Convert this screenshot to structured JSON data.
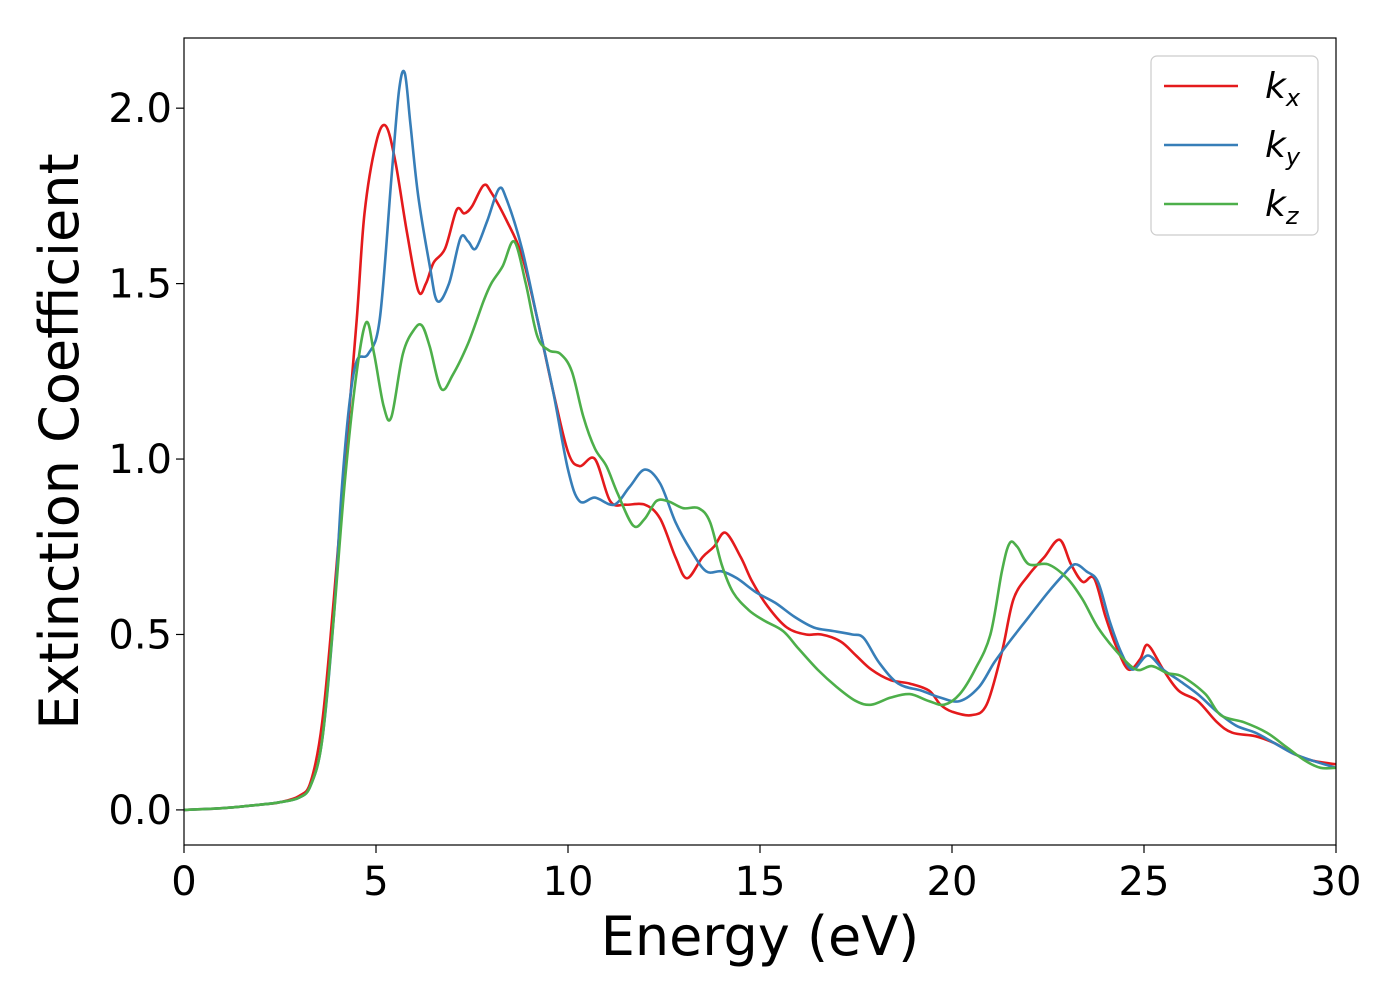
{
  "chart_data": {
    "type": "line",
    "xlabel": "Energy (eV)",
    "ylabel": "Extinction Coefficient",
    "xlim": [
      0,
      30
    ],
    "ylim": [
      -0.1,
      2.2
    ],
    "xticks": [
      0,
      5,
      10,
      15,
      20,
      25,
      30
    ],
    "xtick_labels": [
      "0",
      "5",
      "10",
      "15",
      "20",
      "25",
      "30"
    ],
    "yticks": [
      0.0,
      0.5,
      1.0,
      1.5,
      2.0
    ],
    "ytick_labels": [
      "0.0",
      "0.5",
      "1.0",
      "1.5",
      "2.0"
    ],
    "grid": false,
    "legend_position": "top-right",
    "series": [
      {
        "name": "k_x",
        "label_main": "k",
        "label_sub": "x",
        "color": "#e41a1c",
        "points": [
          [
            0,
            0
          ],
          [
            1,
            0.005
          ],
          [
            2,
            0.015
          ],
          [
            2.5,
            0.022
          ],
          [
            3,
            0.04
          ],
          [
            3.3,
            0.08
          ],
          [
            3.6,
            0.25
          ],
          [
            3.9,
            0.6
          ],
          [
            4.2,
            1.0
          ],
          [
            4.5,
            1.4
          ],
          [
            4.7,
            1.7
          ],
          [
            5,
            1.9
          ],
          [
            5.25,
            1.95
          ],
          [
            5.5,
            1.85
          ],
          [
            5.8,
            1.65
          ],
          [
            6.1,
            1.48
          ],
          [
            6.3,
            1.5
          ],
          [
            6.5,
            1.56
          ],
          [
            6.8,
            1.6
          ],
          [
            7.1,
            1.71
          ],
          [
            7.3,
            1.7
          ],
          [
            7.5,
            1.72
          ],
          [
            7.8,
            1.78
          ],
          [
            8,
            1.76
          ],
          [
            8.4,
            1.68
          ],
          [
            8.8,
            1.58
          ],
          [
            9.2,
            1.4
          ],
          [
            9.6,
            1.2
          ],
          [
            10,
            1.02
          ],
          [
            10.3,
            0.98
          ],
          [
            10.7,
            1.0
          ],
          [
            11.1,
            0.88
          ],
          [
            11.5,
            0.87
          ],
          [
            12,
            0.87
          ],
          [
            12.4,
            0.83
          ],
          [
            12.8,
            0.72
          ],
          [
            13.1,
            0.66
          ],
          [
            13.5,
            0.72
          ],
          [
            13.8,
            0.75
          ],
          [
            14.1,
            0.79
          ],
          [
            14.5,
            0.72
          ],
          [
            14.8,
            0.65
          ],
          [
            15.2,
            0.58
          ],
          [
            15.7,
            0.52
          ],
          [
            16.2,
            0.5
          ],
          [
            16.6,
            0.5
          ],
          [
            17.1,
            0.48
          ],
          [
            17.5,
            0.44
          ],
          [
            17.9,
            0.4
          ],
          [
            18.4,
            0.37
          ],
          [
            18.9,
            0.36
          ],
          [
            19.4,
            0.34
          ],
          [
            19.7,
            0.3
          ],
          [
            20,
            0.28
          ],
          [
            20.5,
            0.27
          ],
          [
            20.9,
            0.3
          ],
          [
            21.3,
            0.45
          ],
          [
            21.6,
            0.6
          ],
          [
            22,
            0.67
          ],
          [
            22.4,
            0.72
          ],
          [
            22.8,
            0.77
          ],
          [
            23.1,
            0.7
          ],
          [
            23.4,
            0.65
          ],
          [
            23.7,
            0.66
          ],
          [
            24,
            0.55
          ],
          [
            24.3,
            0.46
          ],
          [
            24.6,
            0.4
          ],
          [
            24.9,
            0.43
          ],
          [
            25.1,
            0.47
          ],
          [
            25.5,
            0.4
          ],
          [
            25.9,
            0.34
          ],
          [
            26.4,
            0.31
          ],
          [
            26.9,
            0.25
          ],
          [
            27.3,
            0.22
          ],
          [
            27.9,
            0.21
          ],
          [
            28.4,
            0.19
          ],
          [
            28.9,
            0.16
          ],
          [
            29.4,
            0.14
          ],
          [
            30,
            0.13
          ]
        ]
      },
      {
        "name": "k_y",
        "label_main": "k",
        "label_sub": "y",
        "color": "#377eb8",
        "points": [
          [
            0,
            0
          ],
          [
            1,
            0.005
          ],
          [
            2,
            0.015
          ],
          [
            2.5,
            0.022
          ],
          [
            3,
            0.035
          ],
          [
            3.3,
            0.07
          ],
          [
            3.6,
            0.2
          ],
          [
            3.9,
            0.55
          ],
          [
            4.1,
            0.9
          ],
          [
            4.3,
            1.15
          ],
          [
            4.5,
            1.28
          ],
          [
            4.8,
            1.3
          ],
          [
            5.1,
            1.4
          ],
          [
            5.4,
            1.8
          ],
          [
            5.6,
            2.05
          ],
          [
            5.75,
            2.1
          ],
          [
            5.9,
            1.95
          ],
          [
            6.1,
            1.75
          ],
          [
            6.4,
            1.55
          ],
          [
            6.6,
            1.45
          ],
          [
            6.9,
            1.5
          ],
          [
            7.2,
            1.63
          ],
          [
            7.4,
            1.62
          ],
          [
            7.6,
            1.6
          ],
          [
            7.9,
            1.68
          ],
          [
            8.2,
            1.77
          ],
          [
            8.4,
            1.74
          ],
          [
            8.8,
            1.6
          ],
          [
            9.2,
            1.4
          ],
          [
            9.6,
            1.2
          ],
          [
            10,
            0.97
          ],
          [
            10.3,
            0.88
          ],
          [
            10.7,
            0.89
          ],
          [
            11.2,
            0.87
          ],
          [
            11.6,
            0.92
          ],
          [
            12,
            0.97
          ],
          [
            12.4,
            0.93
          ],
          [
            12.8,
            0.82
          ],
          [
            13.2,
            0.74
          ],
          [
            13.6,
            0.68
          ],
          [
            14,
            0.68
          ],
          [
            14.4,
            0.66
          ],
          [
            14.9,
            0.62
          ],
          [
            15.4,
            0.59
          ],
          [
            15.9,
            0.55
          ],
          [
            16.4,
            0.52
          ],
          [
            16.9,
            0.51
          ],
          [
            17.4,
            0.5
          ],
          [
            17.7,
            0.49
          ],
          [
            18.1,
            0.42
          ],
          [
            18.6,
            0.36
          ],
          [
            19.2,
            0.34
          ],
          [
            19.7,
            0.32
          ],
          [
            20.2,
            0.31
          ],
          [
            20.7,
            0.35
          ],
          [
            21.1,
            0.42
          ],
          [
            21.5,
            0.48
          ],
          [
            22,
            0.55
          ],
          [
            22.5,
            0.62
          ],
          [
            22.9,
            0.67
          ],
          [
            23.2,
            0.7
          ],
          [
            23.5,
            0.68
          ],
          [
            23.8,
            0.65
          ],
          [
            24.1,
            0.54
          ],
          [
            24.4,
            0.45
          ],
          [
            24.7,
            0.4
          ],
          [
            25.1,
            0.44
          ],
          [
            25.5,
            0.4
          ],
          [
            25.9,
            0.37
          ],
          [
            26.4,
            0.33
          ],
          [
            26.9,
            0.28
          ],
          [
            27.4,
            0.24
          ],
          [
            27.9,
            0.22
          ],
          [
            28.4,
            0.19
          ],
          [
            28.9,
            0.16
          ],
          [
            29.4,
            0.14
          ],
          [
            30,
            0.12
          ]
        ]
      },
      {
        "name": "k_z",
        "label_main": "k",
        "label_sub": "z",
        "color": "#4daf4a",
        "points": [
          [
            0,
            0
          ],
          [
            1,
            0.005
          ],
          [
            2,
            0.015
          ],
          [
            2.5,
            0.022
          ],
          [
            3,
            0.035
          ],
          [
            3.3,
            0.07
          ],
          [
            3.6,
            0.2
          ],
          [
            3.9,
            0.55
          ],
          [
            4.2,
            0.95
          ],
          [
            4.5,
            1.25
          ],
          [
            4.75,
            1.39
          ],
          [
            4.95,
            1.3
          ],
          [
            5.2,
            1.15
          ],
          [
            5.4,
            1.12
          ],
          [
            5.7,
            1.3
          ],
          [
            6,
            1.37
          ],
          [
            6.2,
            1.38
          ],
          [
            6.4,
            1.32
          ],
          [
            6.7,
            1.2
          ],
          [
            7,
            1.24
          ],
          [
            7.4,
            1.33
          ],
          [
            7.8,
            1.45
          ],
          [
            8,
            1.5
          ],
          [
            8.3,
            1.55
          ],
          [
            8.6,
            1.62
          ],
          [
            8.9,
            1.5
          ],
          [
            9.2,
            1.35
          ],
          [
            9.5,
            1.31
          ],
          [
            9.8,
            1.3
          ],
          [
            10.1,
            1.25
          ],
          [
            10.4,
            1.12
          ],
          [
            10.7,
            1.03
          ],
          [
            11,
            0.98
          ],
          [
            11.3,
            0.9
          ],
          [
            11.7,
            0.81
          ],
          [
            12,
            0.83
          ],
          [
            12.3,
            0.88
          ],
          [
            12.6,
            0.88
          ],
          [
            13,
            0.86
          ],
          [
            13.4,
            0.86
          ],
          [
            13.7,
            0.82
          ],
          [
            14,
            0.7
          ],
          [
            14.3,
            0.62
          ],
          [
            14.7,
            0.57
          ],
          [
            15.1,
            0.54
          ],
          [
            15.6,
            0.51
          ],
          [
            16,
            0.46
          ],
          [
            16.5,
            0.4
          ],
          [
            17,
            0.35
          ],
          [
            17.5,
            0.31
          ],
          [
            17.9,
            0.3
          ],
          [
            18.4,
            0.32
          ],
          [
            18.9,
            0.33
          ],
          [
            19.4,
            0.31
          ],
          [
            19.8,
            0.3
          ],
          [
            20.2,
            0.33
          ],
          [
            20.6,
            0.4
          ],
          [
            21,
            0.5
          ],
          [
            21.3,
            0.68
          ],
          [
            21.5,
            0.76
          ],
          [
            21.7,
            0.75
          ],
          [
            22,
            0.7
          ],
          [
            22.5,
            0.7
          ],
          [
            23,
            0.66
          ],
          [
            23.4,
            0.6
          ],
          [
            23.8,
            0.52
          ],
          [
            24.3,
            0.45
          ],
          [
            24.8,
            0.4
          ],
          [
            25.2,
            0.41
          ],
          [
            25.6,
            0.39
          ],
          [
            26,
            0.38
          ],
          [
            26.6,
            0.33
          ],
          [
            27,
            0.27
          ],
          [
            27.6,
            0.25
          ],
          [
            28.2,
            0.22
          ],
          [
            28.7,
            0.18
          ],
          [
            29.2,
            0.14
          ],
          [
            29.6,
            0.12
          ],
          [
            30,
            0.12
          ]
        ]
      }
    ]
  }
}
